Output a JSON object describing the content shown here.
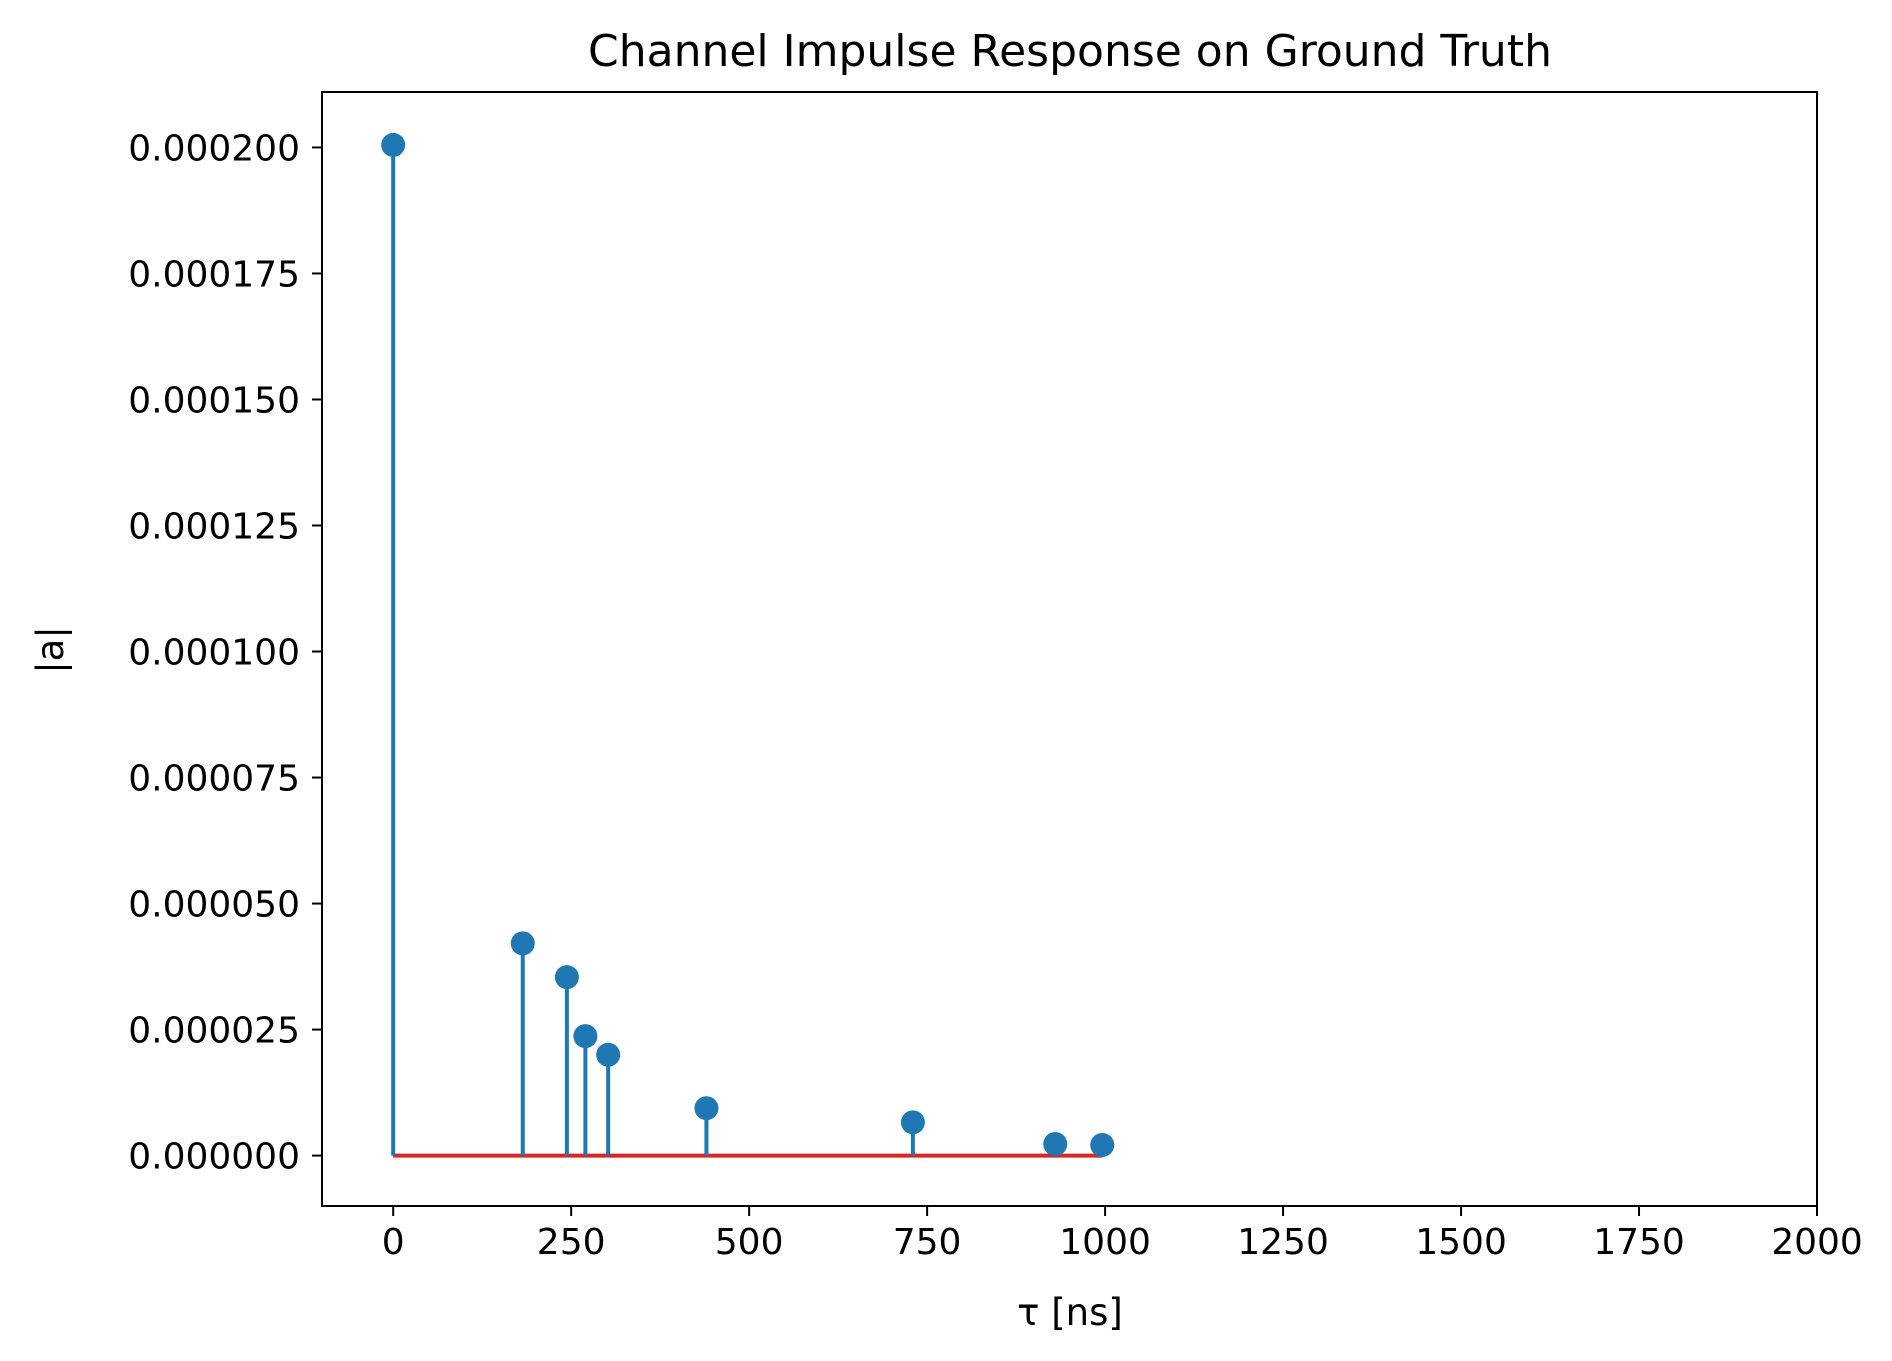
{
  "chart_data": {
    "type": "stem",
    "title": "Channel Impulse Response on Ground Truth",
    "xlabel": "τ [ns]",
    "ylabel": "|a|",
    "xlim": [
      -100,
      2000
    ],
    "ylim": [
      -1e-05,
      0.000211
    ],
    "xticks": [
      0,
      250,
      500,
      750,
      1000,
      1250,
      1500,
      1750,
      2000
    ],
    "xtick_labels": [
      "0",
      "250",
      "500",
      "750",
      "1000",
      "1250",
      "1500",
      "1750",
      "2000"
    ],
    "yticks": [
      0,
      2.5e-05,
      5e-05,
      7.5e-05,
      0.0001,
      0.000125,
      0.00015,
      0.000175,
      0.0002
    ],
    "ytick_labels": [
      "0.000000",
      "0.000025",
      "0.000050",
      "0.000075",
      "0.000100",
      "0.000125",
      "0.000150",
      "0.000175",
      "0.000200"
    ],
    "grid": false,
    "colors": {
      "stem": "#1f77b4",
      "baseline": "#d62728"
    },
    "series": [
      {
        "x": [
          0,
          182,
          244,
          270,
          302,
          440,
          730,
          930,
          996
        ],
        "y": [
          0.0002005,
          4.21e-05,
          3.54e-05,
          2.37e-05,
          2e-05,
          9.4e-06,
          6.6e-06,
          2.3e-06,
          2.1e-06
        ]
      }
    ],
    "baseline": {
      "y": 0,
      "x_from": 0,
      "x_to": 996
    }
  }
}
